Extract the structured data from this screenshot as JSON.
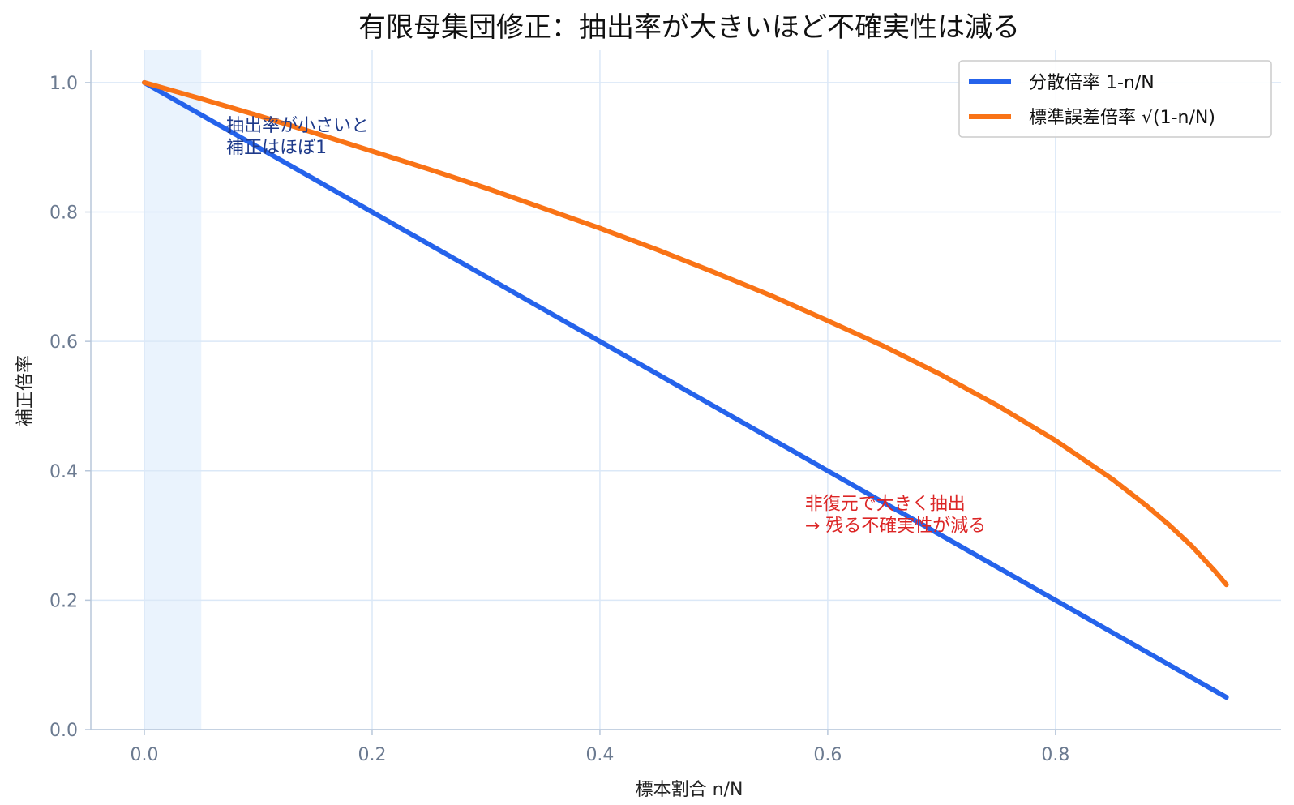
{
  "chart_data": {
    "type": "line",
    "title": "有限母集団修正：抽出率が大きいほど不確実性は減る",
    "xlabel": "標本割合 n/N",
    "ylabel": "補正倍率",
    "xlim": [
      -0.047,
      0.998
    ],
    "ylim": [
      0.0,
      1.05
    ],
    "x_ticks": [
      0.0,
      0.2,
      0.4,
      0.6,
      0.8
    ],
    "x_tick_labels": [
      "0.0",
      "0.2",
      "0.4",
      "0.6",
      "0.8"
    ],
    "y_ticks": [
      0.0,
      0.2,
      0.4,
      0.6,
      0.8,
      1.0
    ],
    "y_tick_labels": [
      "0.0",
      "0.2",
      "0.4",
      "0.6",
      "0.8",
      "1.0"
    ],
    "grid": true,
    "legend_position": "top-right",
    "shaded_region": {
      "x_start": 0.0,
      "x_end": 0.05,
      "color": "#eaf3fd"
    },
    "x": [
      0.0,
      0.05,
      0.1,
      0.15,
      0.2,
      0.25,
      0.3,
      0.35,
      0.4,
      0.45,
      0.5,
      0.55,
      0.6,
      0.65,
      0.7,
      0.75,
      0.8,
      0.85,
      0.88,
      0.9,
      0.92,
      0.94,
      0.95
    ],
    "series": [
      {
        "name": "分散倍率 1-n/N",
        "color": "#2563eb",
        "values": [
          1.0,
          0.95,
          0.9,
          0.85,
          0.8,
          0.75,
          0.7,
          0.65,
          0.6,
          0.55,
          0.5,
          0.45,
          0.4,
          0.35,
          0.3,
          0.25,
          0.2,
          0.15,
          0.12,
          0.1,
          0.08,
          0.06,
          0.05
        ]
      },
      {
        "name": "標準誤差倍率 √(1-n/N)",
        "color": "#f97316",
        "values": [
          1.0,
          0.975,
          0.949,
          0.922,
          0.894,
          0.866,
          0.837,
          0.806,
          0.775,
          0.742,
          0.707,
          0.671,
          0.632,
          0.592,
          0.548,
          0.5,
          0.447,
          0.387,
          0.346,
          0.316,
          0.283,
          0.245,
          0.224
        ]
      }
    ],
    "annotations": [
      {
        "lines": [
          "抽出率が小さいと",
          "補正はほぼ1"
        ],
        "x": 0.072,
        "y": 0.925,
        "color": "#1e3a8a"
      },
      {
        "lines": [
          "非復元で大きく抽出",
          "→ 残る不確実性が減る"
        ],
        "x": 0.58,
        "y": 0.34,
        "color": "#dc2626"
      }
    ]
  }
}
